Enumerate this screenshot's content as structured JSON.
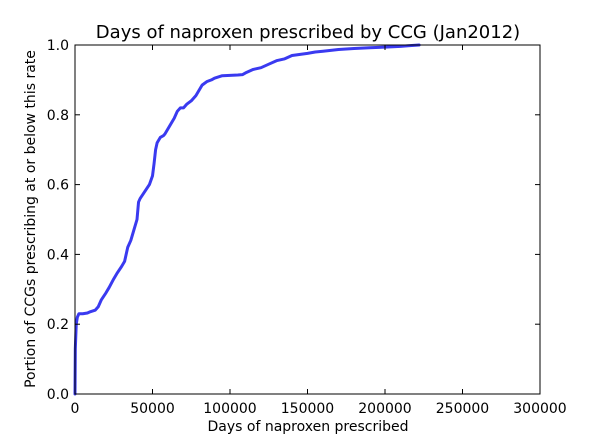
{
  "chart_data": {
    "type": "line",
    "title": "Days of naproxen prescribed by CCG (Jan2012)",
    "xlabel": "Days of naproxen prescribed",
    "ylabel": "Portion of CCGs prescribing at or below this rate",
    "xlim": [
      0,
      300000
    ],
    "ylim": [
      0,
      1.0
    ],
    "xticks": [
      0,
      50000,
      100000,
      150000,
      200000,
      250000,
      300000
    ],
    "xtick_labels": [
      "0",
      "50000",
      "100000",
      "150000",
      "200000",
      "250000",
      "300000"
    ],
    "yticks": [
      0,
      0.2,
      0.4,
      0.6,
      0.8,
      1.0
    ],
    "ytick_labels": [
      "0.0",
      "0.2",
      "0.4",
      "0.6",
      "0.8",
      "1.0"
    ],
    "grid": false,
    "line_color": "#3a3af0",
    "series": [
      {
        "x": [
          0,
          200,
          800,
          1500,
          2500,
          5000,
          8000,
          10000,
          13000,
          15000,
          17000,
          20000,
          22000,
          25000,
          27000,
          30000,
          32000,
          34000,
          36000,
          38000,
          40000,
          41000,
          42000,
          45000,
          48000,
          50000,
          51000,
          52000,
          53000,
          55000,
          57000,
          58000,
          60000,
          62000,
          64000,
          66000,
          68000,
          70000,
          72000,
          75000,
          78000,
          80000,
          82000,
          85000,
          88000,
          90000,
          95000,
          100000,
          105000,
          108000,
          110000,
          115000,
          120000,
          125000,
          130000,
          135000,
          140000,
          150000,
          155000,
          160000,
          170000,
          180000,
          190000,
          200000,
          210000,
          215000,
          222000
        ],
        "y": [
          0.0,
          0.13,
          0.2,
          0.22,
          0.23,
          0.23,
          0.232,
          0.236,
          0.24,
          0.25,
          0.27,
          0.29,
          0.305,
          0.33,
          0.345,
          0.365,
          0.38,
          0.42,
          0.44,
          0.47,
          0.5,
          0.55,
          0.56,
          0.58,
          0.6,
          0.625,
          0.66,
          0.7,
          0.72,
          0.735,
          0.74,
          0.745,
          0.76,
          0.775,
          0.79,
          0.81,
          0.82,
          0.82,
          0.83,
          0.84,
          0.855,
          0.87,
          0.885,
          0.895,
          0.9,
          0.905,
          0.912,
          0.913,
          0.914,
          0.915,
          0.92,
          0.93,
          0.935,
          0.945,
          0.955,
          0.96,
          0.97,
          0.976,
          0.98,
          0.982,
          0.987,
          0.99,
          0.992,
          0.994,
          0.996,
          0.998,
          1.0
        ]
      }
    ]
  }
}
